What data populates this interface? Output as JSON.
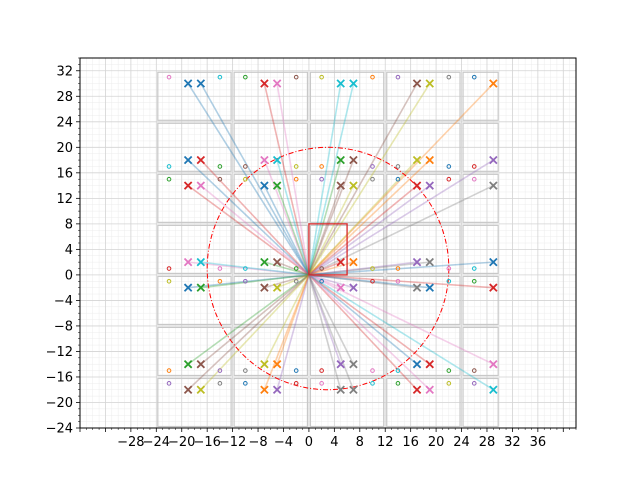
{
  "chart_data": {
    "type": "scatter",
    "title": "",
    "xlabel": "",
    "ylabel": "",
    "xlim": [
      -36,
      42
    ],
    "ylim": [
      -24,
      34
    ],
    "x_ticks": [
      -28,
      -24,
      -20,
      -16,
      -12,
      -8,
      -4,
      0,
      4,
      8,
      12,
      16,
      20,
      24,
      28,
      32,
      36
    ],
    "x_tick_labels": [
      "−28",
      "−24",
      "−20",
      "−16",
      "−12",
      "−8",
      "−4",
      "0",
      "4",
      "8",
      "12",
      "16",
      "20",
      "24",
      "28",
      "32",
      "36"
    ],
    "y_ticks": [
      -24,
      -20,
      -16,
      -12,
      -8,
      -4,
      0,
      4,
      8,
      12,
      16,
      20,
      24,
      28,
      32
    ],
    "y_tick_labels": [
      "−24",
      "−20",
      "−16",
      "−12",
      "−8",
      "−4",
      "0",
      "4",
      "8",
      "12",
      "16",
      "20",
      "24",
      "28",
      "32"
    ],
    "grid": "major and minor",
    "rectangle": {
      "x": 0,
      "y": 0,
      "width": 6,
      "height": 8,
      "color": "#d62728"
    },
    "circle": {
      "cx": 3,
      "cy": 1,
      "r": 19,
      "color": "#ff0000",
      "style": "dash-dot"
    },
    "origin": [
      0,
      0
    ],
    "tile_x_edges": [
      -24,
      -12,
      0,
      12,
      24,
      30
    ],
    "tile_y_edges": [
      -24,
      -16,
      -8,
      0,
      8,
      16,
      24,
      32
    ],
    "x_markers": [
      {
        "x": -19,
        "y": 30,
        "color": "#1f77b4"
      },
      {
        "x": -17,
        "y": 30,
        "color": "#1f77b4"
      },
      {
        "x": -7,
        "y": 30,
        "color": "#d62728"
      },
      {
        "x": -5,
        "y": 30,
        "color": "#e377c2"
      },
      {
        "x": 5,
        "y": 30,
        "color": "#17becf"
      },
      {
        "x": 7,
        "y": 30,
        "color": "#17becf"
      },
      {
        "x": 17,
        "y": 30,
        "color": "#8c564b"
      },
      {
        "x": 19,
        "y": 30,
        "color": "#bcbd22"
      },
      {
        "x": 29,
        "y": 30,
        "color": "#ff7f0e"
      },
      {
        "x": -19,
        "y": 18,
        "color": "#1f77b4"
      },
      {
        "x": -17,
        "y": 18,
        "color": "#d62728"
      },
      {
        "x": -7,
        "y": 18,
        "color": "#e377c2"
      },
      {
        "x": -5,
        "y": 18,
        "color": "#17becf"
      },
      {
        "x": 5,
        "y": 18,
        "color": "#2ca02c"
      },
      {
        "x": 7,
        "y": 18,
        "color": "#8c564b"
      },
      {
        "x": 17,
        "y": 18,
        "color": "#bcbd22"
      },
      {
        "x": 19,
        "y": 18,
        "color": "#ff7f0e"
      },
      {
        "x": 29,
        "y": 18,
        "color": "#9467bd"
      },
      {
        "x": -19,
        "y": 14,
        "color": "#d62728"
      },
      {
        "x": -17,
        "y": 14,
        "color": "#e377c2"
      },
      {
        "x": -7,
        "y": 14,
        "color": "#1f77b4"
      },
      {
        "x": -5,
        "y": 14,
        "color": "#2ca02c"
      },
      {
        "x": 5,
        "y": 14,
        "color": "#8c564b"
      },
      {
        "x": 7,
        "y": 14,
        "color": "#bcbd22"
      },
      {
        "x": 17,
        "y": 14,
        "color": "#d62728"
      },
      {
        "x": 19,
        "y": 14,
        "color": "#9467bd"
      },
      {
        "x": 29,
        "y": 14,
        "color": "#7f7f7f"
      },
      {
        "x": -19,
        "y": 2,
        "color": "#e377c2"
      },
      {
        "x": -17,
        "y": 2,
        "color": "#17becf"
      },
      {
        "x": -7,
        "y": 2,
        "color": "#2ca02c"
      },
      {
        "x": -5,
        "y": 2,
        "color": "#8c564b"
      },
      {
        "x": 5,
        "y": 2,
        "color": "#d62728"
      },
      {
        "x": 7,
        "y": 2,
        "color": "#ff7f0e"
      },
      {
        "x": 17,
        "y": 2,
        "color": "#9467bd"
      },
      {
        "x": 19,
        "y": 2,
        "color": "#7f7f7f"
      },
      {
        "x": 29,
        "y": 2,
        "color": "#1f77b4"
      },
      {
        "x": -19,
        "y": -2,
        "color": "#1f77b4"
      },
      {
        "x": -17,
        "y": -2,
        "color": "#2ca02c"
      },
      {
        "x": -7,
        "y": -2,
        "color": "#8c564b"
      },
      {
        "x": -5,
        "y": -2,
        "color": "#bcbd22"
      },
      {
        "x": 5,
        "y": -2,
        "color": "#e377c2"
      },
      {
        "x": 7,
        "y": -2,
        "color": "#9467bd"
      },
      {
        "x": 17,
        "y": -2,
        "color": "#7f7f7f"
      },
      {
        "x": 19,
        "y": -2,
        "color": "#1f77b4"
      },
      {
        "x": 29,
        "y": -2,
        "color": "#d62728"
      },
      {
        "x": -19,
        "y": -14,
        "color": "#2ca02c"
      },
      {
        "x": -17,
        "y": -14,
        "color": "#8c564b"
      },
      {
        "x": -7,
        "y": -14,
        "color": "#bcbd22"
      },
      {
        "x": -5,
        "y": -14,
        "color": "#ff7f0e"
      },
      {
        "x": 5,
        "y": -14,
        "color": "#9467bd"
      },
      {
        "x": 7,
        "y": -14,
        "color": "#7f7f7f"
      },
      {
        "x": 17,
        "y": -14,
        "color": "#1f77b4"
      },
      {
        "x": 19,
        "y": -14,
        "color": "#d62728"
      },
      {
        "x": 29,
        "y": -14,
        "color": "#e377c2"
      },
      {
        "x": -19,
        "y": -18,
        "color": "#8c564b"
      },
      {
        "x": -17,
        "y": -18,
        "color": "#bcbd22"
      },
      {
        "x": -7,
        "y": -18,
        "color": "#ff7f0e"
      },
      {
        "x": -5,
        "y": -18,
        "color": "#9467bd"
      },
      {
        "x": 5,
        "y": -18,
        "color": "#7f7f7f"
      },
      {
        "x": 7,
        "y": -18,
        "color": "#7f7f7f"
      },
      {
        "x": 17,
        "y": -18,
        "color": "#d62728"
      },
      {
        "x": 19,
        "y": -18,
        "color": "#e377c2"
      },
      {
        "x": 29,
        "y": -18,
        "color": "#17becf"
      }
    ],
    "small_markers": [
      {
        "x": -22,
        "y": 31,
        "color": "#e377c2"
      },
      {
        "x": -14,
        "y": 31,
        "color": "#17becf"
      },
      {
        "x": -10,
        "y": 31,
        "color": "#2ca02c"
      },
      {
        "x": -2,
        "y": 31,
        "color": "#8c564b"
      },
      {
        "x": 2,
        "y": 31,
        "color": "#bcbd22"
      },
      {
        "x": 10,
        "y": 31,
        "color": "#ff7f0e"
      },
      {
        "x": 14,
        "y": 31,
        "color": "#9467bd"
      },
      {
        "x": 22,
        "y": 31,
        "color": "#7f7f7f"
      },
      {
        "x": 26,
        "y": 31,
        "color": "#1f77b4"
      },
      {
        "x": -22,
        "y": 17,
        "color": "#17becf"
      },
      {
        "x": -14,
        "y": 17,
        "color": "#2ca02c"
      },
      {
        "x": -10,
        "y": 17,
        "color": "#8c564b"
      },
      {
        "x": -2,
        "y": 17,
        "color": "#bcbd22"
      },
      {
        "x": 2,
        "y": 17,
        "color": "#ff7f0e"
      },
      {
        "x": 10,
        "y": 17,
        "color": "#9467bd"
      },
      {
        "x": 14,
        "y": 17,
        "color": "#7f7f7f"
      },
      {
        "x": 22,
        "y": 17,
        "color": "#1f77b4"
      },
      {
        "x": 26,
        "y": 17,
        "color": "#d62728"
      },
      {
        "x": -22,
        "y": 15,
        "color": "#2ca02c"
      },
      {
        "x": -14,
        "y": 15,
        "color": "#8c564b"
      },
      {
        "x": -10,
        "y": 15,
        "color": "#bcbd22"
      },
      {
        "x": -2,
        "y": 15,
        "color": "#ff7f0e"
      },
      {
        "x": 2,
        "y": 15,
        "color": "#9467bd"
      },
      {
        "x": 10,
        "y": 15,
        "color": "#7f7f7f"
      },
      {
        "x": 14,
        "y": 15,
        "color": "#1f77b4"
      },
      {
        "x": 22,
        "y": 15,
        "color": "#d62728"
      },
      {
        "x": 26,
        "y": 15,
        "color": "#e377c2"
      },
      {
        "x": -22,
        "y": 1,
        "color": "#d62728"
      },
      {
        "x": -14,
        "y": 1,
        "color": "#e377c2"
      },
      {
        "x": -10,
        "y": 1,
        "color": "#17becf"
      },
      {
        "x": -2,
        "y": 1,
        "color": "#2ca02c"
      },
      {
        "x": 2,
        "y": 1,
        "color": "#8c564b"
      },
      {
        "x": 10,
        "y": 1,
        "color": "#bcbd22"
      },
      {
        "x": 14,
        "y": 1,
        "color": "#ff7f0e"
      },
      {
        "x": 22,
        "y": 1,
        "color": "#e377c2"
      },
      {
        "x": 26,
        "y": 1,
        "color": "#17becf"
      },
      {
        "x": -22,
        "y": -1,
        "color": "#bcbd22"
      },
      {
        "x": -14,
        "y": -1,
        "color": "#ff7f0e"
      },
      {
        "x": -10,
        "y": -1,
        "color": "#9467bd"
      },
      {
        "x": -2,
        "y": -1,
        "color": "#7f7f7f"
      },
      {
        "x": 2,
        "y": -1,
        "color": "#1f77b4"
      },
      {
        "x": 10,
        "y": -1,
        "color": "#d62728"
      },
      {
        "x": 14,
        "y": -1,
        "color": "#e377c2"
      },
      {
        "x": 22,
        "y": -1,
        "color": "#17becf"
      },
      {
        "x": 26,
        "y": -1,
        "color": "#2ca02c"
      },
      {
        "x": -22,
        "y": -15,
        "color": "#ff7f0e"
      },
      {
        "x": -14,
        "y": -15,
        "color": "#9467bd"
      },
      {
        "x": -10,
        "y": -15,
        "color": "#7f7f7f"
      },
      {
        "x": -2,
        "y": -15,
        "color": "#1f77b4"
      },
      {
        "x": 2,
        "y": -15,
        "color": "#d62728"
      },
      {
        "x": 10,
        "y": -15,
        "color": "#e377c2"
      },
      {
        "x": 14,
        "y": -15,
        "color": "#17becf"
      },
      {
        "x": 22,
        "y": -15,
        "color": "#2ca02c"
      },
      {
        "x": 26,
        "y": -15,
        "color": "#8c564b"
      },
      {
        "x": -22,
        "y": -17,
        "color": "#9467bd"
      },
      {
        "x": -14,
        "y": -17,
        "color": "#7f7f7f"
      },
      {
        "x": -10,
        "y": -17,
        "color": "#1f77b4"
      },
      {
        "x": -2,
        "y": -17,
        "color": "#d62728"
      },
      {
        "x": 2,
        "y": -17,
        "color": "#e377c2"
      },
      {
        "x": 10,
        "y": -17,
        "color": "#17becf"
      },
      {
        "x": 14,
        "y": -17,
        "color": "#2ca02c"
      },
      {
        "x": 22,
        "y": -17,
        "color": "#bcbd22"
      },
      {
        "x": 26,
        "y": -17,
        "color": "#9467bd"
      }
    ]
  }
}
